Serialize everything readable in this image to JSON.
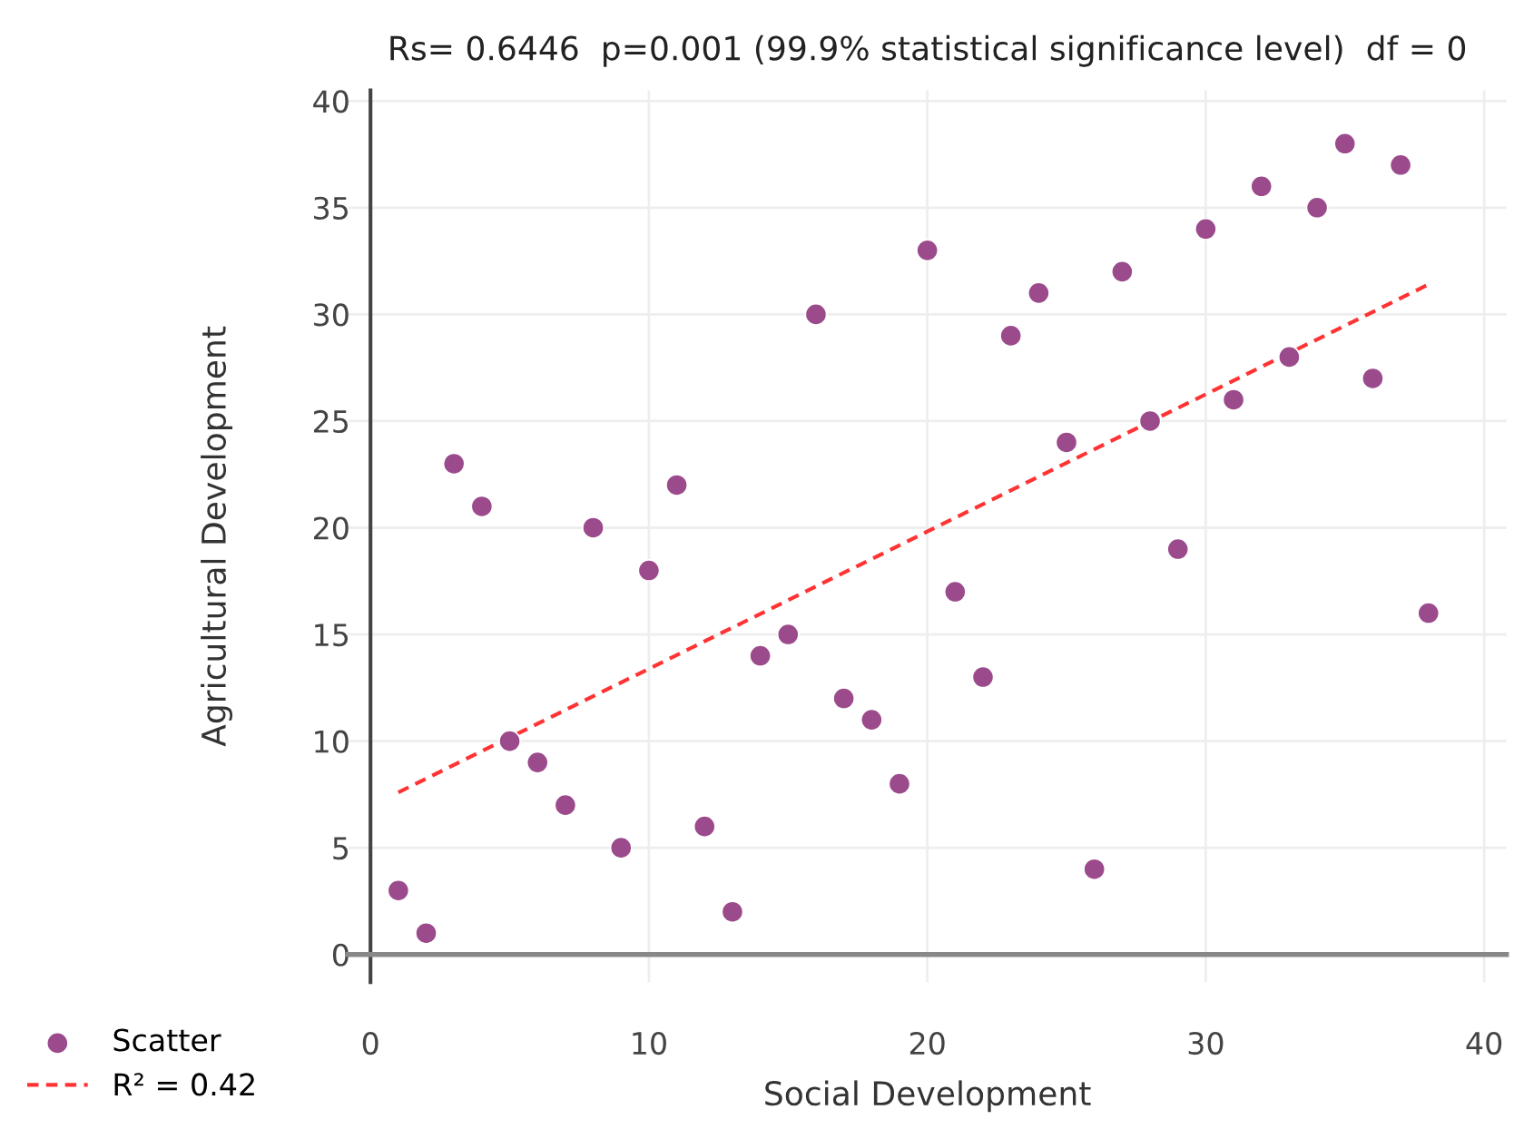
{
  "chart_data": {
    "type": "scatter",
    "title": "Rs= 0.6446  p=0.001 (99.9% statistical significance level)  df = 0",
    "xlabel": "Social Development",
    "ylabel": "Agricultural Development",
    "series": [
      {
        "name": "Scatter",
        "color": "#9b4a8c",
        "marker": "circle",
        "x": [
          1,
          2,
          3,
          4,
          5,
          6,
          7,
          8,
          9,
          10,
          11,
          12,
          13,
          14,
          15,
          16,
          17,
          18,
          19,
          20,
          21,
          22,
          23,
          24,
          25,
          26,
          27,
          28,
          29,
          30,
          31,
          32,
          33,
          34,
          35,
          36,
          37,
          38
        ],
        "values": [
          3,
          1,
          23,
          21,
          10,
          9,
          7,
          20,
          5,
          18,
          22,
          6,
          2,
          14,
          15,
          30,
          12,
          11,
          8,
          33,
          17,
          13,
          29,
          31,
          24,
          4,
          32,
          25,
          19,
          34,
          26,
          36,
          28,
          35,
          38,
          27,
          37,
          16
        ]
      },
      {
        "name": "R² = 0.42",
        "type": "line",
        "color": "#ff3333",
        "line_style": "dashed",
        "marker": "none",
        "x": [
          1,
          38
        ],
        "values": [
          7.6,
          31.4
        ]
      }
    ],
    "xlim": [
      -0.8,
      40.8
    ],
    "ylim": [
      -1.3,
      40.5
    ],
    "xticks": [
      0,
      10,
      20,
      30,
      40
    ],
    "yticks": [
      0,
      5,
      10,
      15,
      20,
      25,
      30,
      35,
      40
    ],
    "grid": true,
    "legend": "bottom left"
  }
}
